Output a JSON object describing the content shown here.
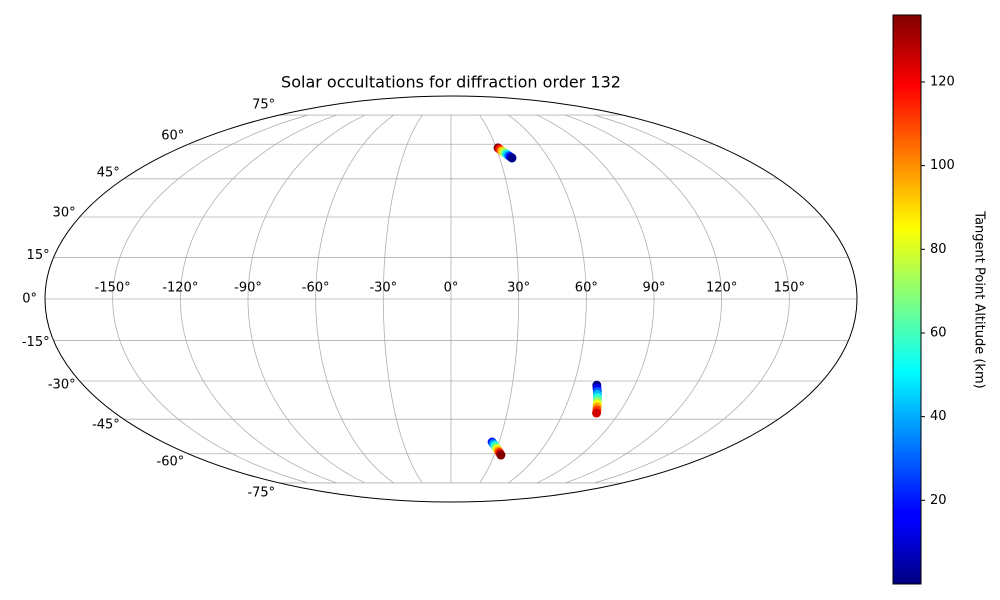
{
  "chart_data": {
    "type": "scatter",
    "projection": "mollweide",
    "title": "Solar occultations for diffraction order 132",
    "x": [
      31.2,
      31.9,
      32.6,
      33.3,
      34.0,
      34.8,
      35.5,
      36.2,
      36.9,
      37.6,
      71.4,
      72.1,
      72.9,
      73.6,
      74.3,
      75.1,
      75.8,
      76.5,
      77.3,
      78.0,
      25.7,
      26.7,
      27.7,
      28.7,
      29.7,
      30.6,
      31.6,
      32.6,
      33.6,
      34.6
    ],
    "y": [
      58.3,
      57.8,
      57.3,
      56.8,
      56.3,
      55.8,
      55.3,
      54.8,
      54.3,
      53.8,
      -31.6,
      -32.8,
      -34.0,
      -35.2,
      -36.4,
      -37.7,
      -38.9,
      -40.1,
      -41.3,
      -42.5,
      -54.7,
      -55.4,
      -56.0,
      -56.7,
      -57.3,
      -58.0,
      -58.6,
      -59.3,
      -59.9,
      -60.6
    ],
    "c": [
      136,
      121,
      106,
      91,
      76,
      61,
      46,
      31,
      16,
      1,
      1,
      15,
      29,
      42,
      56,
      70,
      84,
      98,
      111,
      125,
      20,
      33,
      46,
      59,
      72,
      84,
      97,
      110,
      123,
      136
    ],
    "colormap": "jet",
    "clim": [
      0,
      136
    ],
    "colorbar_label": "Tangent Point Altitude (km)",
    "cticks": [
      20,
      40,
      60,
      80,
      100,
      120
    ],
    "xlim": [
      -180,
      180
    ],
    "ylim": [
      -90,
      90
    ],
    "xticks": [
      {
        "value": -150,
        "label": "-150°"
      },
      {
        "value": -120,
        "label": "-120°"
      },
      {
        "value": -90,
        "label": "-90°"
      },
      {
        "value": -60,
        "label": "-60°"
      },
      {
        "value": -30,
        "label": "-30°"
      },
      {
        "value": 0,
        "label": "0°"
      },
      {
        "value": 30,
        "label": "30°"
      },
      {
        "value": 60,
        "label": "60°"
      },
      {
        "value": 90,
        "label": "90°"
      },
      {
        "value": 120,
        "label": "120°"
      },
      {
        "value": 150,
        "label": "150°"
      }
    ],
    "yticks": [
      {
        "value": -75,
        "label": "-75°"
      },
      {
        "value": -60,
        "label": "-60°"
      },
      {
        "value": -45,
        "label": "-45°"
      },
      {
        "value": -30,
        "label": "-30°"
      },
      {
        "value": -15,
        "label": "-15°"
      },
      {
        "value": 0,
        "label": "0°"
      },
      {
        "value": 15,
        "label": "15°"
      },
      {
        "value": 30,
        "label": "30°"
      },
      {
        "value": 45,
        "label": "45°"
      },
      {
        "value": 60,
        "label": "60°"
      },
      {
        "value": 75,
        "label": "75°"
      }
    ],
    "grid": true
  }
}
